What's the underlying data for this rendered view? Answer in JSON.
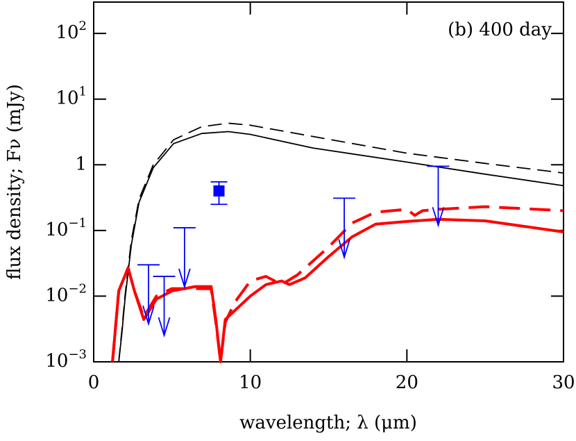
{
  "chart_data": {
    "type": "line",
    "annotation": "(b) 400 day",
    "xlabel": "wavelength; λ (μm)",
    "ylabel": "flux density; Fν (mJy)",
    "xlim": [
      0,
      30
    ],
    "xticks": [
      0,
      10,
      20,
      30
    ],
    "ylim": [
      0.001,
      300
    ],
    "ylog": true,
    "yticks": [
      {
        "value": 0.001,
        "label": "10−3"
      },
      {
        "value": 0.01,
        "label": "10−2"
      },
      {
        "value": 0.1,
        "label": "10−1"
      },
      1,
      {
        "value": 10,
        "label": "101"
      },
      {
        "value": 100,
        "label": "102"
      }
    ],
    "series": [
      {
        "color": "#000000",
        "dash": "solid",
        "width": 1.8,
        "x": [
          1.6,
          1.8,
          2,
          2.4,
          2.9,
          3.8,
          5.1,
          6.9,
          8.6,
          10,
          14,
          20,
          25,
          30
        ],
        "values": [
          0.001,
          0.0027,
          0.009,
          0.06,
          0.27,
          0.9,
          2.1,
          3.0,
          3.2,
          2.9,
          1.8,
          1.1,
          0.72,
          0.48
        ]
      },
      {
        "color": "#000000",
        "dash": "dashed",
        "width": 1.8,
        "x": [
          1.6,
          1.8,
          2,
          2.4,
          2.9,
          3.8,
          5.1,
          6.9,
          8.6,
          10,
          14,
          20,
          25,
          30
        ],
        "values": [
          0.001,
          0.003,
          0.01,
          0.07,
          0.3,
          1.0,
          2.4,
          3.8,
          4.3,
          4.0,
          2.7,
          1.5,
          1.05,
          0.75
        ]
      },
      {
        "color": "#ff0000",
        "dash": "solid",
        "width": 4,
        "x": [
          1.2,
          1.6,
          2.2,
          2.6,
          3.2,
          4,
          5,
          6.5,
          7.5,
          7.8,
          8.1,
          8.4,
          9,
          10,
          11,
          12,
          12.5,
          13.5,
          15,
          16.5,
          18,
          20,
          22,
          25,
          30
        ],
        "values": [
          0.001,
          0.012,
          0.027,
          0.012,
          0.0044,
          0.009,
          0.012,
          0.014,
          0.014,
          0.0044,
          0.001,
          0.0044,
          0.006,
          0.01,
          0.015,
          0.017,
          0.015,
          0.019,
          0.04,
          0.08,
          0.125,
          0.137,
          0.148,
          0.14,
          0.095
        ]
      },
      {
        "color": "#ff0000",
        "dash": "dashed",
        "width": 4,
        "x": [
          1.2,
          1.6,
          2.2,
          2.6,
          3.2,
          4,
          5,
          6.5,
          7.5,
          7.8,
          8.1,
          8.4,
          9,
          10,
          11,
          12,
          13,
          15,
          16.5,
          18,
          20,
          20.5,
          21,
          22,
          25,
          30
        ],
        "values": [
          0.001,
          0.012,
          0.027,
          0.012,
          0.0048,
          0.01,
          0.013,
          0.013,
          0.013,
          0.004,
          0.001,
          0.004,
          0.008,
          0.017,
          0.02,
          0.015,
          0.021,
          0.056,
          0.13,
          0.19,
          0.21,
          0.17,
          0.2,
          0.21,
          0.23,
          0.2
        ]
      }
    ],
    "upper_limits": {
      "color": "#0000ff",
      "x": [
        3.5,
        4.5,
        5.8,
        16,
        22
      ],
      "values": [
        0.03,
        0.02,
        0.11,
        0.31,
        0.95
      ]
    },
    "points": {
      "color": "#0000ff",
      "x": [
        8
      ],
      "values": [
        0.4
      ],
      "lower": [
        0.25
      ],
      "upper": [
        0.55
      ]
    }
  }
}
